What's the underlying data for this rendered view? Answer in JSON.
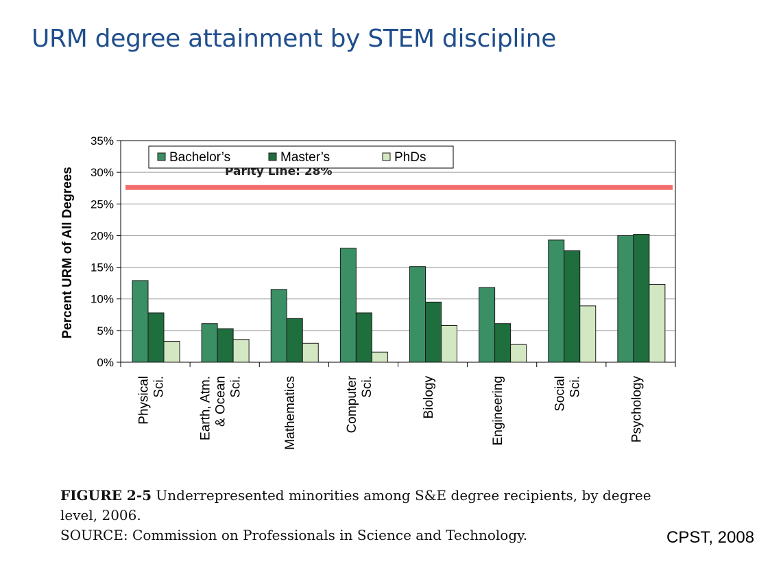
{
  "slide": {
    "title": "URM degree attainment by STEM discipline",
    "citation": "CPST, 2008"
  },
  "caption": {
    "figure_label": "FIGURE 2-5",
    "text": "Underrepresented minorities among S&E degree recipients, by degree level, 2006.",
    "source": "SOURCE: Commission on Professionals in Science and Technology."
  },
  "chart_data": {
    "type": "bar",
    "title": "",
    "xlabel": "",
    "ylabel": "Percent URM of All Degrees",
    "ylim": [
      0,
      35
    ],
    "yticks": [
      "0%",
      "5%",
      "10%",
      "15%",
      "20%",
      "25%",
      "30%",
      "35%"
    ],
    "grid": true,
    "legend_position": "top-left",
    "categories": [
      [
        "Physical",
        "Sci."
      ],
      [
        "Earth, Atm.",
        "& Ocean",
        "Sci."
      ],
      [
        "Mathematics"
      ],
      [
        "Computer",
        "Sci."
      ],
      [
        "Biology"
      ],
      [
        "Engineering"
      ],
      [
        "Social",
        "Sci."
      ],
      [
        "Psychology"
      ]
    ],
    "series": [
      {
        "name": "Bachelor’s",
        "color": "#3a8f64",
        "values": [
          12.9,
          6.1,
          11.5,
          18.0,
          15.1,
          11.8,
          19.3,
          20.0
        ]
      },
      {
        "name": "Master’s",
        "color": "#1e6e3e",
        "values": [
          7.8,
          5.3,
          6.9,
          7.8,
          9.5,
          6.1,
          17.6,
          20.2
        ]
      },
      {
        "name": "PhDs",
        "color": "#d3e8c2",
        "values": [
          3.3,
          3.6,
          3.0,
          1.6,
          5.8,
          2.8,
          8.9,
          12.3
        ]
      }
    ],
    "reference_line": {
      "label": "Parity Line: 28%",
      "value": 27.6,
      "color": "#f26c6c"
    }
  }
}
